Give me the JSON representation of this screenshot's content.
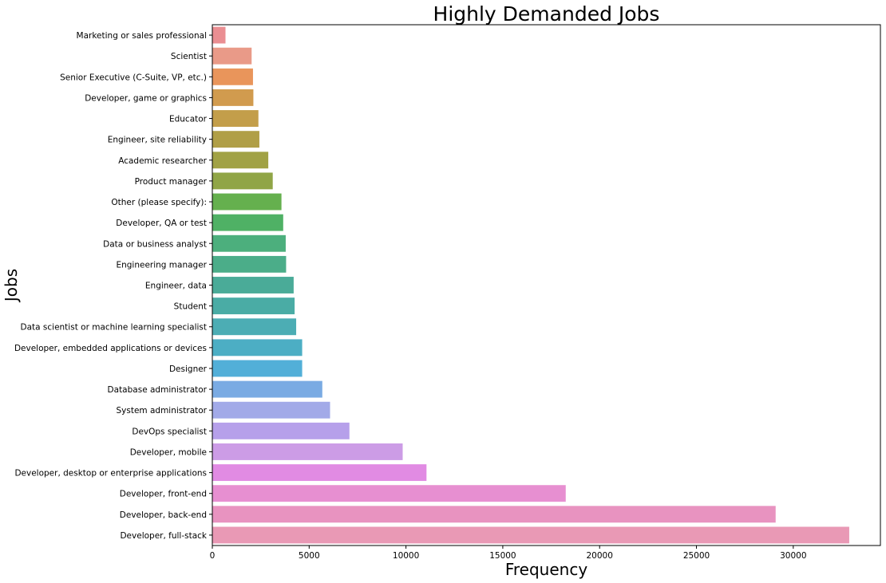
{
  "chart_data": {
    "type": "bar",
    "orientation": "horizontal",
    "title": "Highly Demanded Jobs",
    "xlabel": "Frequency",
    "ylabel": "Jobs",
    "xlim": [
      0,
      34500
    ],
    "xticks": [
      0,
      5000,
      10000,
      15000,
      20000,
      25000,
      30000
    ],
    "grid": false,
    "categories": [
      "Marketing or sales professional",
      "Scientist",
      "Senior Executive (C-Suite, VP, etc.)",
      "Developer, game or graphics",
      "Educator",
      "Engineer, site reliability",
      "Academic researcher",
      "Product manager",
      "Other (please specify):",
      "Developer, QA or test",
      "Data or business analyst",
      "Engineering manager",
      "Engineer, data",
      "Student",
      "Data scientist or machine learning specialist",
      "Developer, embedded applications or devices",
      "Designer",
      "Database administrator",
      "System administrator",
      "DevOps specialist",
      "Developer, mobile",
      "Developer, desktop or enterprise applications",
      "Developer, front-end",
      "Developer, back-end",
      "Developer, full-stack"
    ],
    "values": [
      680,
      2030,
      2100,
      2120,
      2380,
      2430,
      2890,
      3120,
      3570,
      3660,
      3790,
      3810,
      4200,
      4250,
      4330,
      4640,
      4640,
      5680,
      6080,
      7080,
      9830,
      11060,
      18250,
      29090,
      32890
    ],
    "colors": [
      "#ea8e92",
      "#e99a88",
      "#e9955b",
      "#d19b4e",
      "#c39e4a",
      "#b09f47",
      "#a1a245",
      "#90a546",
      "#65b04e",
      "#4fb165",
      "#4caf7d",
      "#4bad89",
      "#4aab98",
      "#4aaca5",
      "#4cadb4",
      "#4caec4",
      "#52afd8",
      "#7aabe3",
      "#a2aae8",
      "#b6a0ea",
      "#cc9ce6",
      "#e18be3",
      "#e78fd1",
      "#e893c0",
      "#e999b5"
    ]
  }
}
